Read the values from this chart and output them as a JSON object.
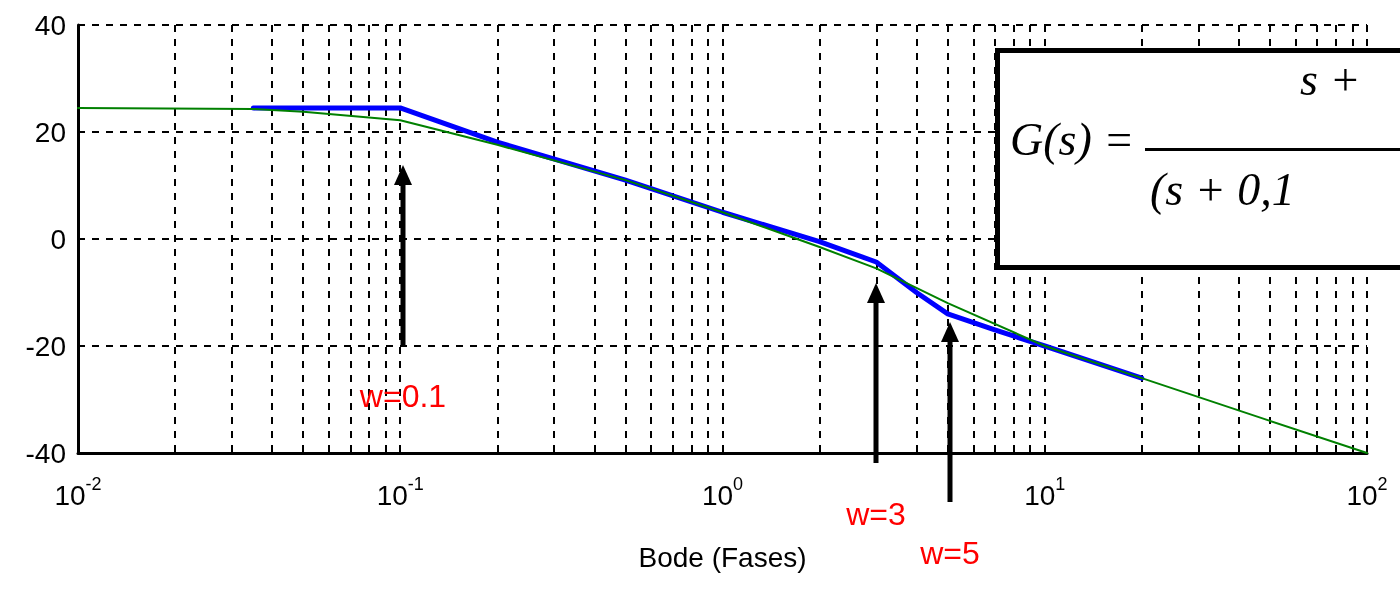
{
  "chart_data": {
    "type": "line",
    "xlabel": "Bode (Fases)",
    "log": "x",
    "grid": true,
    "line_style": "solid",
    "marker": "none",
    "xlim": [
      0.01,
      100
    ],
    "xticks": [
      {
        "value": 0.01,
        "label": "10$^{-2}$"
      },
      {
        "value": 0.02,
        "label": null
      },
      {
        "value": 0.03,
        "label": null
      },
      {
        "value": 0.04,
        "label": null
      },
      {
        "value": 0.05,
        "label": null
      },
      {
        "value": 0.06,
        "label": null
      },
      {
        "value": 0.07,
        "label": null
      },
      {
        "value": 0.08,
        "label": null
      },
      {
        "value": 0.09,
        "label": null
      },
      {
        "value": 0.1,
        "label": "10$^{-1}$"
      },
      {
        "value": 0.2,
        "label": null
      },
      {
        "value": 0.3,
        "label": null
      },
      {
        "value": 0.4,
        "label": null
      },
      {
        "value": 0.5,
        "label": null
      },
      {
        "value": 0.6,
        "label": null
      },
      {
        "value": 0.7,
        "label": null
      },
      {
        "value": 0.8,
        "label": null
      },
      {
        "value": 0.9,
        "label": null
      },
      {
        "value": 1,
        "label": "10$^{0}$"
      },
      {
        "value": 2,
        "label": null
      },
      {
        "value": 3,
        "label": null
      },
      {
        "value": 4,
        "label": null
      },
      {
        "value": 5,
        "label": null
      },
      {
        "value": 6,
        "label": null
      },
      {
        "value": 7,
        "label": null
      },
      {
        "value": 8,
        "label": null
      },
      {
        "value": 9,
        "label": null
      },
      {
        "value": 10,
        "label": "10$^{1}$"
      },
      {
        "value": 20,
        "label": null
      },
      {
        "value": 30,
        "label": null
      },
      {
        "value": 40,
        "label": null
      },
      {
        "value": 50,
        "label": null
      },
      {
        "value": 60,
        "label": null
      },
      {
        "value": 70,
        "label": null
      },
      {
        "value": 80,
        "label": null
      },
      {
        "value": 90,
        "label": null
      },
      {
        "value": 100,
        "label": "10$^{2}$"
      }
    ],
    "ylim": [
      -40,
      40
    ],
    "yticks": [
      -40,
      -20,
      0,
      20,
      40
    ],
    "series": [
      {
        "color": "#0000ff",
        "x": [
          0.035,
          0.1,
          0.2,
          0.5,
          1,
          2,
          3,
          4,
          5,
          7,
          10,
          20
        ],
        "values": [
          24.5,
          24.5,
          18.1,
          11,
          5,
          -0.5,
          -4.3,
          -10,
          -14,
          -17,
          -20,
          -26
        ]
      },
      {
        "color": "#008000",
        "x": [
          0.01,
          0.035,
          0.05,
          0.1,
          0.2,
          0.5,
          1,
          2,
          3,
          5,
          10,
          20,
          50,
          100
        ],
        "values": [
          24.5,
          24.3,
          23.8,
          22.2,
          17.6,
          11,
          5,
          -1.5,
          -5.5,
          -12,
          -20,
          -26,
          -34,
          -40
        ]
      }
    ],
    "annotations": [
      "w=0.1",
      "w=3",
      "w=5",
      "G(s) =",
      "s +",
      "(s + 0,1"
    ]
  }
}
